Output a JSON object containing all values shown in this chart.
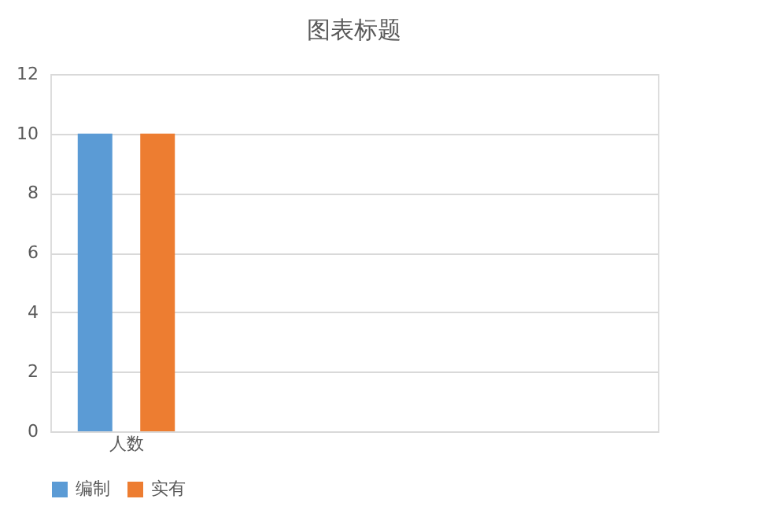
{
  "chart_data": {
    "type": "bar",
    "title": "图表标题",
    "categories": [
      "人数",
      null,
      null,
      null
    ],
    "series": [
      {
        "name": "编制",
        "color": "#5b9bd5",
        "values": [
          10,
          null,
          null,
          null
        ]
      },
      {
        "name": "实有",
        "color": "#ed7d31",
        "values": [
          10,
          null,
          null,
          null
        ]
      }
    ],
    "ylim": [
      0,
      12
    ],
    "yticks": [
      0,
      2,
      4,
      6,
      8,
      10,
      12
    ],
    "grid": "y",
    "legend": "bottom"
  }
}
